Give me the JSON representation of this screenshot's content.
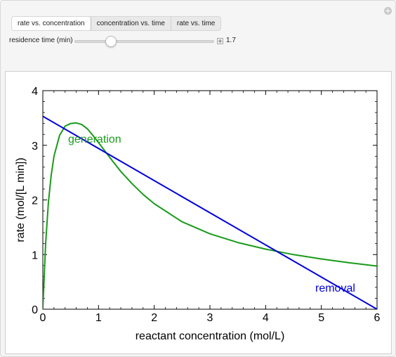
{
  "tabs": [
    {
      "label": "rate vs. concentration",
      "active": true
    },
    {
      "label": "concentration vs. time",
      "active": false
    },
    {
      "label": "rate vs. time",
      "active": false
    }
  ],
  "control": {
    "label": "residence time (min)",
    "value": "1.7",
    "min": 0.5,
    "max": 5,
    "current": 1.7
  },
  "colors": {
    "generation": "#1a9a1a",
    "removal": "#0000dd"
  },
  "chart_data": {
    "type": "line",
    "xlabel": "reactant concentration (mol/L)",
    "ylabel": "rate (mol/[L min])",
    "xlim": [
      0,
      6
    ],
    "ylim": [
      0,
      4
    ],
    "xticks": [
      "0",
      "1",
      "2",
      "3",
      "4",
      "5",
      "6"
    ],
    "yticks": [
      "0",
      "1",
      "2",
      "3",
      "4"
    ],
    "series": [
      {
        "name": "generation",
        "x": [
          0,
          0.05,
          0.1,
          0.15,
          0.2,
          0.3,
          0.4,
          0.5,
          0.6,
          0.7,
          0.8,
          0.9,
          1.0,
          1.2,
          1.4,
          1.6,
          1.8,
          2.0,
          2.5,
          3.0,
          3.5,
          4.0,
          4.5,
          5.0,
          5.5,
          6.0
        ],
        "y": [
          0,
          1.2,
          1.95,
          2.45,
          2.8,
          3.18,
          3.35,
          3.4,
          3.41,
          3.38,
          3.3,
          3.18,
          3.05,
          2.78,
          2.52,
          2.3,
          2.1,
          1.93,
          1.6,
          1.38,
          1.22,
          1.1,
          1.0,
          0.92,
          0.85,
          0.79
        ]
      },
      {
        "name": "removal",
        "x": [
          0,
          6
        ],
        "y": [
          3.53,
          0
        ]
      }
    ]
  }
}
